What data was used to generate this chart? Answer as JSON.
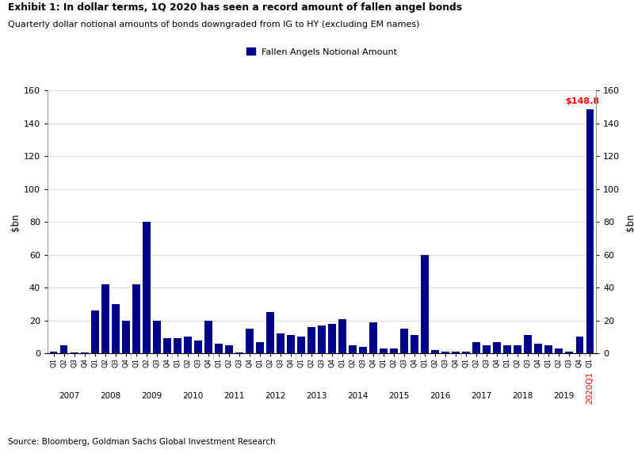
{
  "title_bold": "Exhibit 1: In dollar terms, 1Q 2020 has seen a record amount of fallen angel bonds",
  "title_sub": "Quarterly dollar notional amounts of bonds downgraded from IG to HY (excluding EM names)",
  "ylabel": "$bn",
  "source": "Source: Bloomberg, Goldman Sachs Global Investment Research",
  "legend_label": "Fallen Angels Notional Amount",
  "bar_color": "#00008B",
  "annotation_text": "$148.8",
  "annotation_color": "#FF0000",
  "ylim": [
    0,
    160
  ],
  "yticks": [
    0,
    20,
    40,
    60,
    80,
    100,
    120,
    140,
    160
  ],
  "values": [
    1,
    5,
    0.5,
    0.5,
    26,
    42,
    30,
    20,
    42,
    80,
    20,
    9,
    9,
    10,
    8,
    20,
    6,
    5,
    0.5,
    15,
    7,
    25,
    12,
    11,
    10,
    16,
    17,
    18,
    21,
    5,
    4,
    19,
    3,
    3,
    15,
    11,
    60,
    2,
    1,
    1,
    1,
    7,
    5,
    7,
    5,
    5,
    11,
    6,
    5,
    3,
    1,
    10,
    148.8
  ],
  "years": [
    "2007",
    "2008",
    "2009",
    "2010",
    "2011",
    "2012",
    "2013",
    "2014",
    "2015",
    "2016",
    "2017",
    "2018",
    "2019"
  ],
  "background_color": "#FFFFFF",
  "grid_color": "#CCCCCC",
  "last_year_color": "#FF0000",
  "spine_color": "#999999"
}
